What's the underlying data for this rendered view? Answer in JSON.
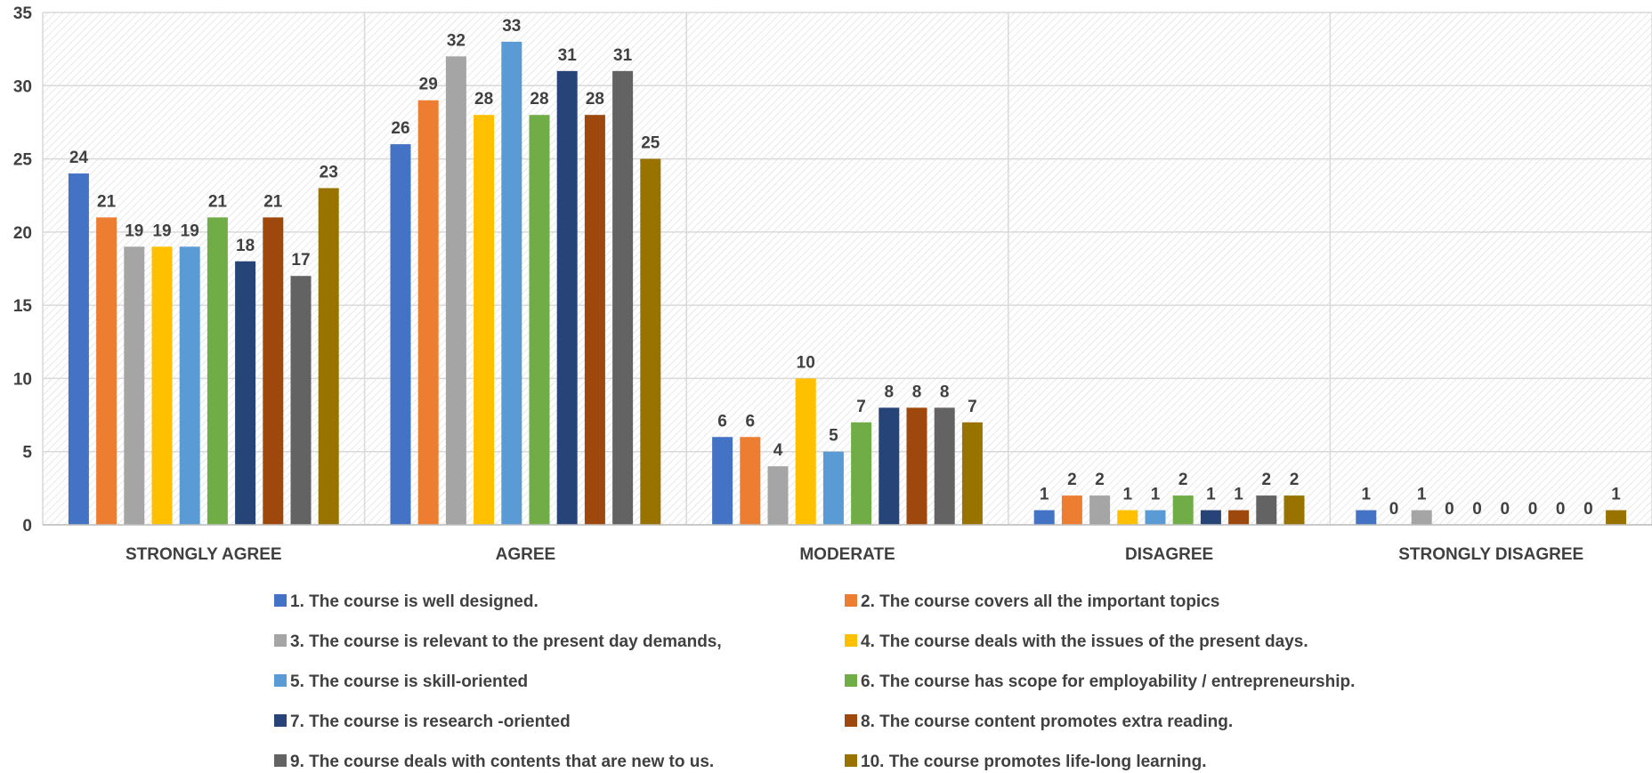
{
  "chart_data": {
    "type": "bar",
    "title": "",
    "xlabel": "",
    "ylabel": "",
    "ylim": [
      0,
      35
    ],
    "yticks": [
      0,
      5,
      10,
      15,
      20,
      25,
      30,
      35
    ],
    "grid": true,
    "legend_position": "bottom",
    "categories": [
      "STRONGLY AGREE",
      "AGREE",
      "MODERATE",
      "DISAGREE",
      "STRONGLY DISAGREE"
    ],
    "series": [
      {
        "name": "1. The course is well designed.",
        "color": "#4472C4",
        "values": [
          24,
          26,
          6,
          1,
          1
        ]
      },
      {
        "name": "2. The course covers all the important topics",
        "color": "#ED7D31",
        "values": [
          21,
          29,
          6,
          2,
          0
        ]
      },
      {
        "name": "3. The course is relevant to the present day demands,",
        "color": "#A5A5A5",
        "values": [
          19,
          32,
          4,
          2,
          1
        ]
      },
      {
        "name": "4. The course deals with the issues of the present days.",
        "color": "#FFC000",
        "values": [
          19,
          28,
          10,
          1,
          0
        ]
      },
      {
        "name": "5. The course is skill-oriented",
        "color": "#5B9BD5",
        "values": [
          19,
          33,
          5,
          1,
          0
        ]
      },
      {
        "name": "6. The course has scope for employability / entrepreneurship.",
        "color": "#70AD47",
        "values": [
          21,
          28,
          7,
          2,
          0
        ]
      },
      {
        "name": "7. The course is research -oriented",
        "color": "#264478",
        "values": [
          18,
          31,
          8,
          1,
          0
        ]
      },
      {
        "name": "8. The course content promotes extra reading.",
        "color": "#9E480E",
        "values": [
          21,
          28,
          8,
          1,
          0
        ]
      },
      {
        "name": "9. The course deals with contents that are new to us.",
        "color": "#636363",
        "values": [
          17,
          31,
          8,
          2,
          0
        ]
      },
      {
        "name": "10. The course promotes life-long learning.",
        "color": "#997300",
        "values": [
          23,
          25,
          7,
          2,
          1
        ]
      }
    ]
  }
}
